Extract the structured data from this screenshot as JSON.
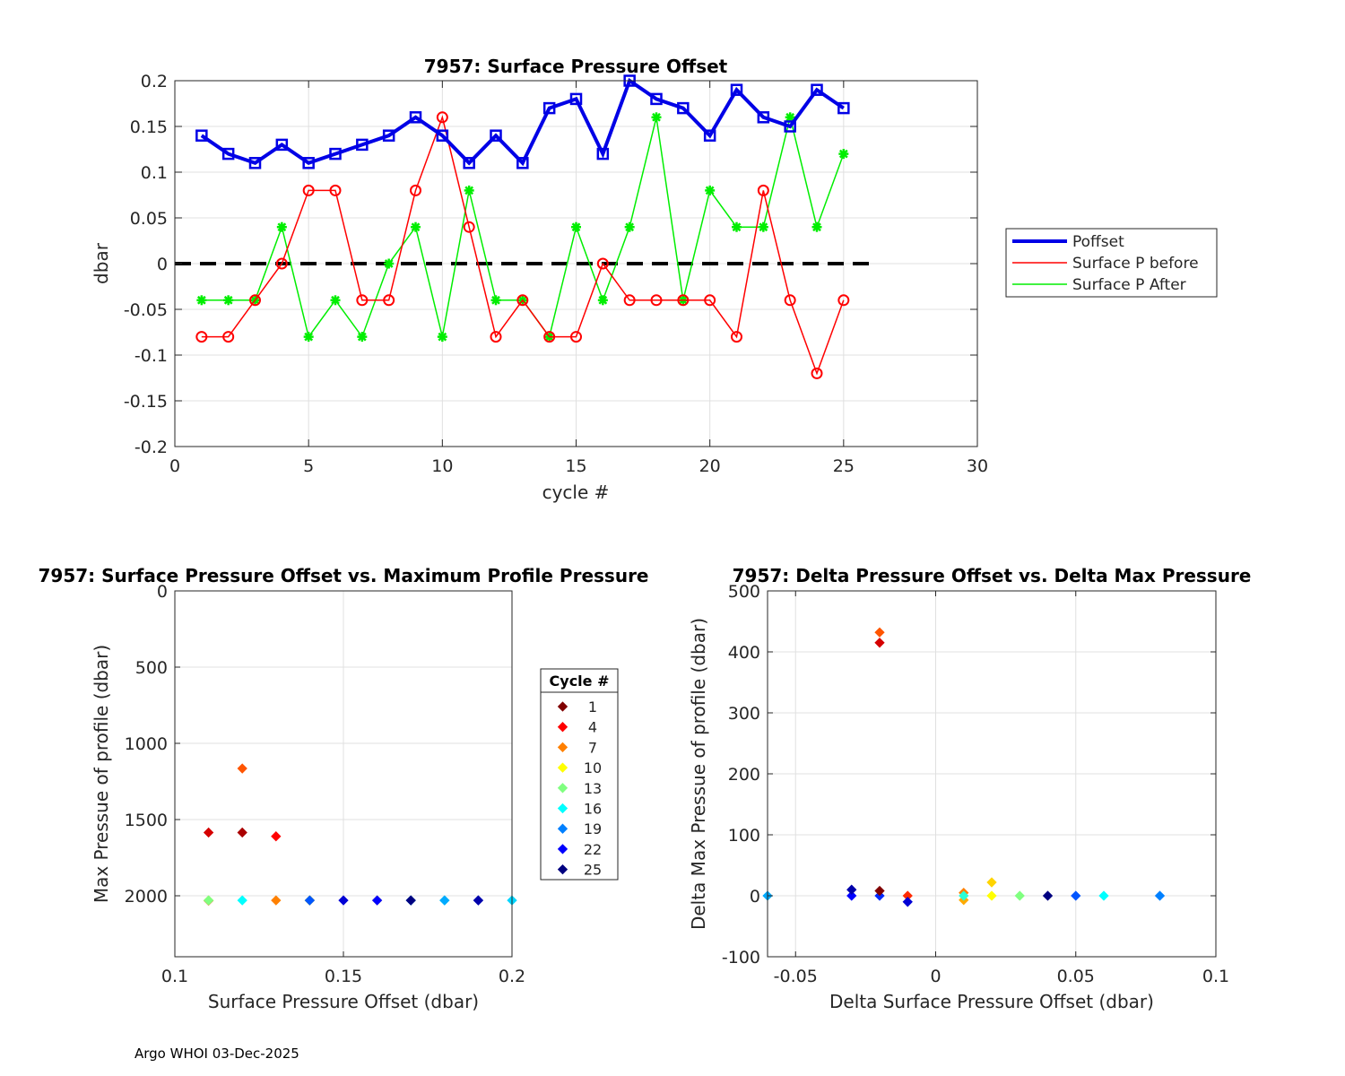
{
  "footer": "Argo WHOI 03-Dec-2025",
  "colors": {
    "poffset": "#0000e6",
    "before": "#ff0000",
    "after": "#00ee00",
    "zero_line": "#000000",
    "grid": "#e0e0e0"
  },
  "chart_data": [
    {
      "type": "line",
      "title": "7957: Surface Pressure Offset",
      "xlabel": "cycle #",
      "ylabel": "dbar",
      "xlim": [
        0,
        30
      ],
      "ylim": [
        -0.2,
        0.2
      ],
      "xticks": [
        0,
        5,
        10,
        15,
        20,
        25,
        30
      ],
      "yticks": [
        -0.2,
        -0.15,
        -0.1,
        -0.05,
        0,
        0.05,
        0.1,
        0.15,
        0.2
      ],
      "ytick_labels": [
        "-0.2",
        "-0.15",
        "-0.1",
        "-0.05",
        "0",
        "0.05",
        "0.1",
        "0.15",
        "0.2"
      ],
      "grid": true,
      "legend_position": "outside-right",
      "x": [
        1,
        2,
        3,
        4,
        5,
        6,
        7,
        8,
        9,
        10,
        11,
        12,
        13,
        14,
        15,
        16,
        17,
        18,
        19,
        20,
        21,
        22,
        23,
        24,
        25
      ],
      "series": [
        {
          "name": "Poffset",
          "marker": "square",
          "values": [
            0.14,
            0.12,
            0.11,
            0.13,
            0.11,
            0.12,
            0.13,
            0.14,
            0.16,
            0.14,
            0.11,
            0.14,
            0.11,
            0.17,
            0.18,
            0.12,
            0.2,
            0.18,
            0.17,
            0.14,
            0.19,
            0.16,
            0.15,
            0.19,
            0.17
          ]
        },
        {
          "name": "Surface P before",
          "marker": "circle",
          "values": [
            -0.08,
            -0.08,
            -0.04,
            0.0,
            0.08,
            0.08,
            -0.04,
            -0.04,
            0.08,
            0.16,
            0.04,
            -0.08,
            -0.04,
            -0.08,
            -0.08,
            0.0,
            -0.04,
            -0.04,
            -0.04,
            -0.04,
            -0.08,
            0.08,
            -0.04,
            -0.12,
            -0.04
          ]
        },
        {
          "name": "Surface P After",
          "marker": "star",
          "values": [
            -0.04,
            -0.04,
            -0.04,
            0.04,
            -0.08,
            -0.04,
            -0.08,
            0.0,
            0.04,
            -0.08,
            0.08,
            -0.04,
            -0.04,
            -0.08,
            0.04,
            -0.04,
            0.04,
            0.16,
            -0.04,
            0.08,
            0.04,
            0.04,
            0.16,
            0.04,
            0.12
          ]
        }
      ],
      "reference_line": {
        "y": 0,
        "x_from": 0,
        "x_to": 26,
        "style": "dashed"
      }
    },
    {
      "type": "scatter",
      "title": "7957: Surface Pressure Offset vs. Maximum Profile Pressure",
      "xlabel": "Surface Pressure Offset (dbar)",
      "ylabel": "Max Pressue of profile (dbar)",
      "xlim": [
        0.1,
        0.2
      ],
      "ylim": [
        0,
        2400
      ],
      "y_reversed": true,
      "xticks": [
        0.1,
        0.15,
        0.2
      ],
      "xtick_labels": [
        "0.1",
        "0.15",
        "0.2"
      ],
      "yticks": [
        0,
        500,
        1000,
        1500,
        2000
      ],
      "grid": true,
      "legend_title": "Cycle #",
      "legend_entries": [
        "1",
        "4",
        "7",
        "10",
        "13",
        "16",
        "19",
        "22",
        "25"
      ],
      "points": [
        {
          "cycle": 1,
          "x": 0.14,
          "y": 2030
        },
        {
          "cycle": 2,
          "x": 0.12,
          "y": 1585
        },
        {
          "cycle": 3,
          "x": 0.11,
          "y": 1585
        },
        {
          "cycle": 4,
          "x": 0.13,
          "y": 1610
        },
        {
          "cycle": 5,
          "x": 0.11,
          "y": 2032
        },
        {
          "cycle": 6,
          "x": 0.12,
          "y": 1165
        },
        {
          "cycle": 7,
          "x": 0.13,
          "y": 2030
        },
        {
          "cycle": 8,
          "x": 0.14,
          "y": 2030
        },
        {
          "cycle": 9,
          "x": 0.16,
          "y": 2030
        },
        {
          "cycle": 10,
          "x": 0.14,
          "y": 2030
        },
        {
          "cycle": 11,
          "x": 0.11,
          "y": 2030
        },
        {
          "cycle": 12,
          "x": 0.14,
          "y": 2030
        },
        {
          "cycle": 13,
          "x": 0.11,
          "y": 2030
        },
        {
          "cycle": 14,
          "x": 0.17,
          "y": 2030
        },
        {
          "cycle": 15,
          "x": 0.18,
          "y": 2030
        },
        {
          "cycle": 16,
          "x": 0.12,
          "y": 2030
        },
        {
          "cycle": 17,
          "x": 0.2,
          "y": 2030
        },
        {
          "cycle": 18,
          "x": 0.18,
          "y": 2030
        },
        {
          "cycle": 19,
          "x": 0.17,
          "y": 2030
        },
        {
          "cycle": 20,
          "x": 0.14,
          "y": 2030
        },
        {
          "cycle": 21,
          "x": 0.19,
          "y": 2030
        },
        {
          "cycle": 22,
          "x": 0.16,
          "y": 2030
        },
        {
          "cycle": 23,
          "x": 0.15,
          "y": 2030
        },
        {
          "cycle": 24,
          "x": 0.19,
          "y": 2030
        },
        {
          "cycle": 25,
          "x": 0.17,
          "y": 2030
        }
      ]
    },
    {
      "type": "scatter",
      "title": "7957: Delta Pressure Offset vs. Delta Max Pressure",
      "xlabel": "Delta Surface Pressure Offset (dbar)",
      "ylabel": "Delta Max Pressue of profile (dbar)",
      "xlim": [
        -0.06,
        0.1
      ],
      "ylim": [
        -100,
        500
      ],
      "xticks": [
        -0.05,
        0,
        0.05,
        0.1
      ],
      "xtick_labels": [
        "-0.05",
        "0",
        "0.05",
        "0.1"
      ],
      "yticks": [
        -100,
        0,
        100,
        200,
        300,
        400,
        500
      ],
      "grid": true,
      "points": [
        {
          "cycle": 3,
          "x": -0.02,
          "y": 415
        },
        {
          "cycle": 6,
          "x": -0.02,
          "y": 432
        },
        {
          "cycle": 5,
          "x": -0.01,
          "y": 0
        },
        {
          "cycle": 7,
          "x": 0.01,
          "y": 5
        },
        {
          "cycle": 8,
          "x": 0.01,
          "y": -7
        },
        {
          "cycle": 9,
          "x": 0.02,
          "y": 22
        },
        {
          "cycle": 10,
          "x": 0.02,
          "y": 0
        },
        {
          "cycle": 13,
          "x": 0.03,
          "y": 0
        },
        {
          "cycle": 16,
          "x": 0.06,
          "y": 0
        },
        {
          "cycle": 15,
          "x": 0.01,
          "y": 0
        },
        {
          "cycle": 18,
          "x": -0.06,
          "y": 0
        },
        {
          "cycle": 19,
          "x": 0.08,
          "y": 0
        },
        {
          "cycle": 20,
          "x": 0.05,
          "y": 0
        },
        {
          "cycle": 21,
          "x": -0.02,
          "y": 0
        },
        {
          "cycle": 22,
          "x": -0.03,
          "y": 0
        },
        {
          "cycle": 23,
          "x": -0.01,
          "y": -10
        },
        {
          "cycle": 24,
          "x": -0.03,
          "y": 10
        },
        {
          "cycle": 25,
          "x": 0.04,
          "y": 0
        },
        {
          "cycle": 1,
          "x": -0.02,
          "y": 8
        }
      ]
    }
  ]
}
